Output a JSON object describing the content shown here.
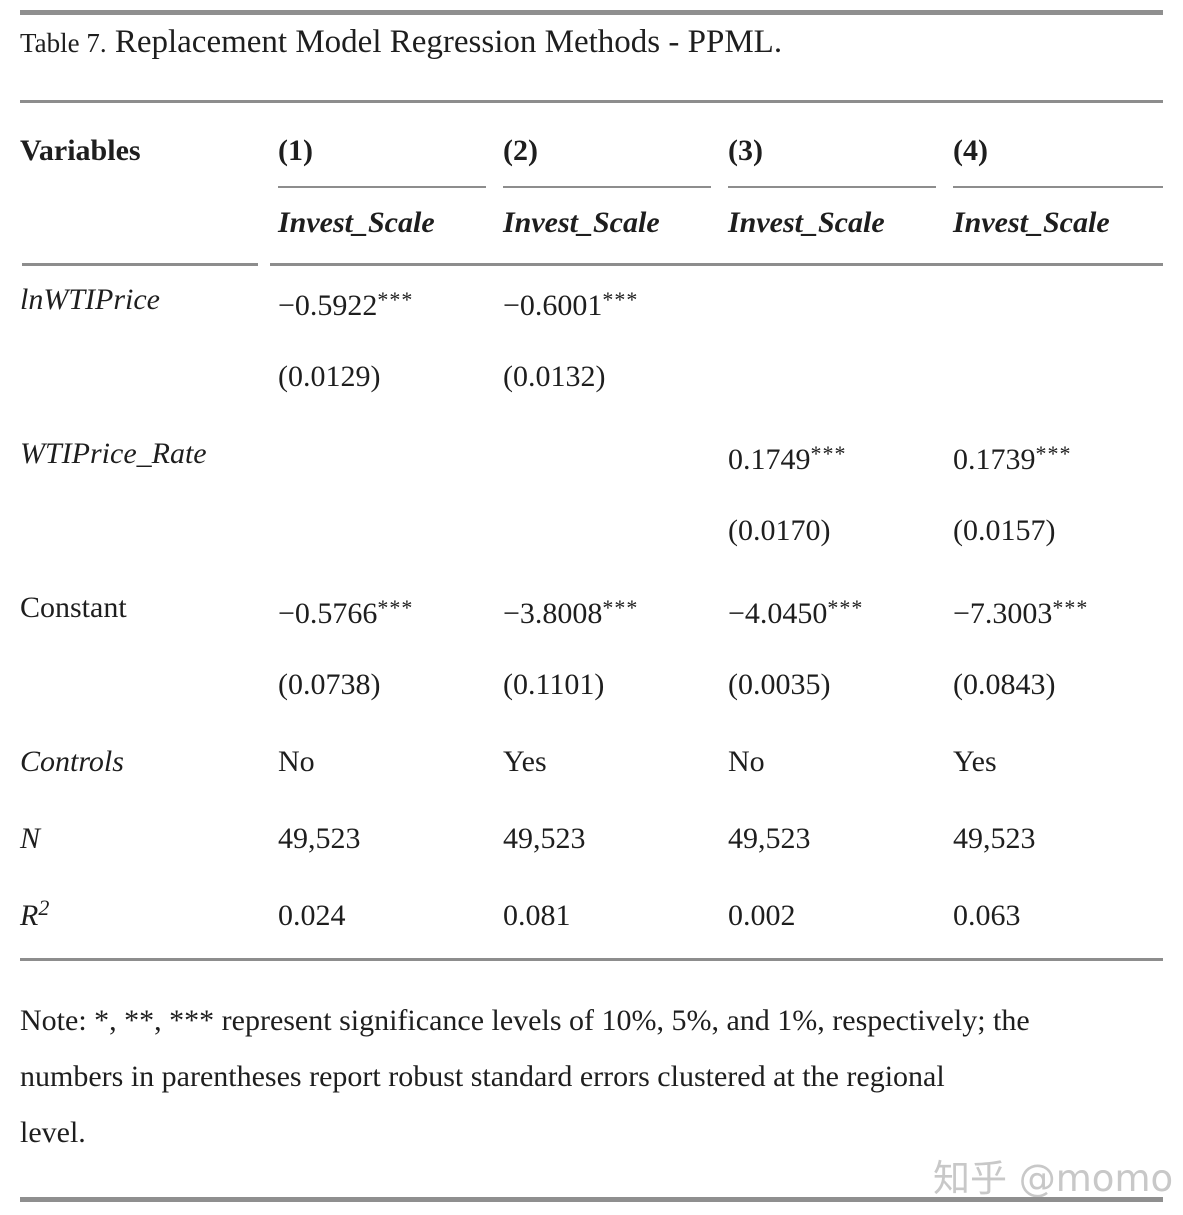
{
  "title": {
    "label": "Table 7.",
    "text": " Replacement Model Regression Methods - PPML."
  },
  "table": {
    "header": {
      "variables_label": "Variables",
      "column_numbers": [
        "(1)",
        "(2)",
        "(3)",
        "(4)"
      ],
      "column_dep_var": [
        "Invest_Scale",
        "Invest_Scale",
        "Invest_Scale",
        "Invest_Scale"
      ]
    },
    "rows": [
      {
        "label": "lnWTIPrice",
        "label_italic": true,
        "values": [
          "−0.5922***",
          "−0.6001***",
          "",
          ""
        ]
      },
      {
        "label": "",
        "label_italic": false,
        "values": [
          "(0.0129)",
          "(0.0132)",
          "",
          ""
        ]
      },
      {
        "label": "WTIPrice_Rate",
        "label_italic": true,
        "values": [
          "",
          "",
          "0.1749***",
          "0.1739***"
        ]
      },
      {
        "label": "",
        "label_italic": false,
        "values": [
          "",
          "",
          "(0.0170)",
          "(0.0157)"
        ]
      },
      {
        "label": "Constant",
        "label_italic": false,
        "values": [
          "−0.5766***",
          "−3.8008***",
          "−4.0450***",
          "−7.3003***"
        ]
      },
      {
        "label": "",
        "label_italic": false,
        "values": [
          "(0.0738)",
          "(0.1101)",
          "(0.0035)",
          "(0.0843)"
        ]
      },
      {
        "label": "Controls",
        "label_italic": true,
        "values": [
          "No",
          "Yes",
          "No",
          "Yes"
        ]
      },
      {
        "label": "N",
        "label_italic": true,
        "values": [
          "49,523",
          "49,523",
          "49,523",
          "49,523"
        ]
      },
      {
        "label": "R",
        "label_sup": "2",
        "label_italic": true,
        "values": [
          "0.024",
          "0.081",
          "0.002",
          "0.063"
        ]
      }
    ]
  },
  "note": {
    "lines": [
      "Note: *, **, *** represent significance levels of 10%, 5%, and 1%, respectively; the",
      "numbers in parentheses report robust standard errors clustered at the regional",
      "level."
    ]
  },
  "watermark": {
    "text": "知乎 @momo"
  },
  "colors": {
    "text": "#1e1e1e",
    "rule_gray": "#8d8d8d",
    "watermark_gray": "#c8c8c8"
  }
}
